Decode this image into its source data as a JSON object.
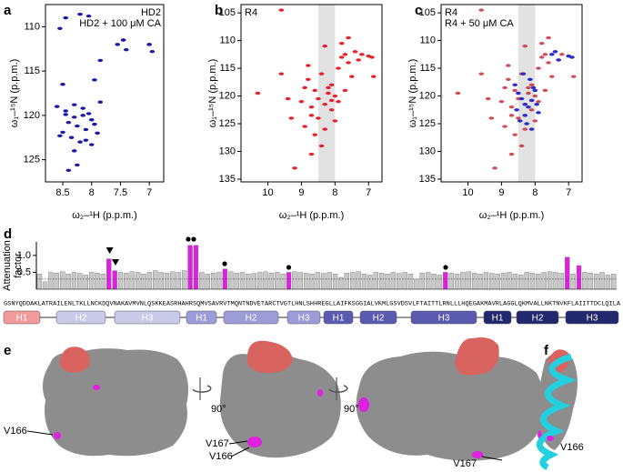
{
  "chart_data": [
    {
      "type": "scatter",
      "panel_label": "a",
      "xlabel": "ω₂–¹H (p.p.m.)",
      "ylabel": "ω₁–¹⁵N (p.p.m.)",
      "xlim": [
        8.8,
        6.75
      ],
      "ylim": [
        107.5,
        127.5
      ],
      "xticks": [
        8.5,
        8,
        7.5,
        7
      ],
      "yticks": [
        110,
        115,
        120,
        125
      ],
      "legend": "top-right",
      "series": [
        {
          "name": "HD2",
          "color": "#e8202a",
          "x": [
            7.45,
            7.0,
            8.2
          ],
          "y": [
            111.5,
            112.0,
            108.6
          ]
        },
        {
          "name": "HD2 + 100 μM CA",
          "color": "#1a1aa8",
          "x": [
            8.55,
            8.45,
            8.2,
            8.05,
            7.55,
            7.45,
            7.4,
            7.0,
            6.95,
            7.85,
            7.95,
            8.5,
            8.6,
            8.45,
            8.3,
            8.15,
            8.05,
            8.0,
            7.95,
            8.4,
            8.25,
            8.1,
            7.9,
            8.55,
            8.35,
            8.2,
            8.0,
            8.45,
            8.3,
            8.15,
            7.85,
            8.5,
            8.3,
            8.1,
            8.4,
            8.25
          ],
          "y": [
            110.2,
            109.0,
            108.6,
            108.8,
            112.0,
            111.5,
            112.6,
            112.0,
            112.8,
            113.8,
            116.0,
            116.5,
            119.0,
            119.5,
            118.8,
            119.2,
            119.8,
            120.5,
            121.0,
            120.8,
            121.2,
            121.6,
            122.0,
            122.3,
            122.5,
            123.0,
            123.3,
            119.9,
            120.2,
            120.0,
            118.5,
            121.9,
            124.0,
            122.8,
            126.2,
            125.6
          ]
        }
      ]
    },
    {
      "type": "scatter",
      "panel_label": "b",
      "xlabel": "ω₂–¹H (p.p.m.)",
      "ylabel": "ω₁–¹⁵N (p.p.m.)",
      "xlim": [
        10.8,
        6.6
      ],
      "ylim": [
        103.5,
        135.5
      ],
      "xticks": [
        10,
        9,
        8,
        7
      ],
      "yticks": [
        105,
        110,
        115,
        120,
        125,
        130,
        135
      ],
      "legend": "top-left",
      "band": [
        8.5,
        8.0
      ],
      "series": [
        {
          "name": "R4",
          "color": "#e8202a",
          "x": [
            10.3,
            9.6,
            9.4,
            9.3,
            9.0,
            8.9,
            8.8,
            8.7,
            8.6,
            8.5,
            8.4,
            8.3,
            8.2,
            8.1,
            8.0,
            7.9,
            7.8,
            7.7,
            7.6,
            7.5,
            7.4,
            7.3,
            7.2,
            7.0,
            6.9,
            6.85,
            8.9,
            8.7,
            8.5,
            8.3,
            8.1,
            7.9,
            7.7,
            8.6,
            8.4,
            8.2,
            8.0,
            7.8,
            8.8,
            8.3,
            7.6,
            9.2,
            8.7,
            8.1,
            9.6
          ],
          "y": [
            119.5,
            116.0,
            120.5,
            124.0,
            121.0,
            118.5,
            117.0,
            122.0,
            119.0,
            120.5,
            116.0,
            121.5,
            119.5,
            118.0,
            120.0,
            115.0,
            113.0,
            112.5,
            114.0,
            116.5,
            112.0,
            113.5,
            112.5,
            112.8,
            113.0,
            116.5,
            125.5,
            123.5,
            124.0,
            126.0,
            122.5,
            121.0,
            119.0,
            127.0,
            129.0,
            118.5,
            124.5,
            110.5,
            114.5,
            111.0,
            109.5,
            133.0,
            130.5,
            120.8,
            104.5
          ]
        }
      ]
    },
    {
      "type": "scatter",
      "panel_label": "c",
      "xlabel": "ω₂–¹H (p.p.m.)",
      "ylabel": "ω₁–¹⁵N (p.p.m.)",
      "xlim": [
        10.8,
        6.6
      ],
      "ylim": [
        103.5,
        135.5
      ],
      "xticks": [
        10,
        9,
        8,
        7
      ],
      "yticks": [
        105,
        110,
        115,
        120,
        125,
        130,
        135
      ],
      "legend": "top-left",
      "band": [
        8.5,
        8.0
      ],
      "series": [
        {
          "name": "R4",
          "color": "#c8202e",
          "x": [
            10.3,
            9.6,
            9.4,
            9.3,
            9.0,
            8.9,
            8.8,
            8.7,
            8.6,
            8.5,
            8.4,
            8.3,
            8.2,
            8.1,
            8.0,
            7.9,
            7.8,
            7.7,
            7.6,
            7.5,
            7.4,
            7.3,
            7.2,
            7.0,
            6.9,
            6.85,
            8.9,
            8.7,
            8.5,
            8.3,
            8.1,
            7.9,
            7.7,
            8.6,
            8.4,
            8.2,
            8.0,
            7.8,
            8.8,
            8.3,
            7.6,
            9.2,
            8.7,
            8.1,
            9.6
          ],
          "y": [
            119.5,
            116.0,
            120.5,
            124.0,
            121.0,
            118.5,
            117.0,
            122.0,
            119.0,
            120.5,
            116.0,
            121.5,
            119.5,
            118.0,
            120.0,
            115.0,
            113.0,
            112.5,
            114.0,
            116.5,
            112.0,
            113.5,
            112.5,
            112.8,
            113.0,
            116.5,
            125.5,
            123.5,
            124.0,
            126.0,
            122.5,
            121.0,
            119.0,
            127.0,
            129.0,
            118.5,
            124.5,
            110.5,
            114.5,
            111.0,
            109.5,
            133.0,
            130.5,
            120.8,
            104.5
          ]
        },
        {
          "name": "R4 + 50 μM CA",
          "color": "#2a2ad0",
          "x": [
            8.5,
            8.4,
            8.3,
            8.2,
            8.1,
            8.0,
            7.9,
            8.6,
            8.45,
            8.25,
            8.05,
            7.5,
            7.4,
            7.3,
            7.0,
            6.9,
            8.35,
            8.15,
            7.95,
            8.55,
            8.3,
            8.1
          ],
          "y": [
            119.5,
            120.5,
            121.5,
            122.0,
            120.8,
            119.0,
            123.0,
            118.0,
            124.5,
            125.0,
            118.5,
            112.5,
            112.0,
            113.5,
            112.8,
            113.0,
            116.0,
            117.0,
            121.5,
            122.5,
            123.5,
            126.0
          ]
        }
      ]
    },
    {
      "type": "bar",
      "panel_label": "d",
      "ylabel": [
        "Attenuation",
        "factor"
      ],
      "ylim": [
        0,
        1.4
      ],
      "yticks": [
        0.5,
        {
          "value": 1,
          "label": "1.0"
        }
      ],
      "threshold": 0.3,
      "values": [
        0.45,
        0.22,
        0.5,
        0.48,
        0.52,
        0.45,
        0.5,
        0.47,
        0.42,
        0.5,
        0.48,
        0.45,
        0.9,
        0.55,
        0.5,
        0.48,
        0.52,
        0.5,
        0.45,
        0.5,
        0.55,
        0.5,
        0.48,
        0.52,
        0.5,
        0.55,
        1.3,
        1.3,
        0.5,
        0.45,
        0.48,
        0.5,
        0.6,
        0.52,
        0.48,
        0.5,
        0.45,
        0.47,
        0.5,
        0.52,
        0.48,
        0.5,
        0.45,
        0.5,
        0.52,
        0.5,
        0.48,
        0.45,
        0.5,
        0.47,
        0.5,
        0.45,
        0.35,
        0.48,
        0.5,
        0.52,
        0.45,
        0.42,
        0.5,
        0.48,
        0.45,
        0.5,
        0.47,
        0.5,
        0.45,
        0.3,
        0.48,
        0.5,
        0.45,
        0.42,
        0.5,
        0.48,
        0.45,
        0.5,
        0.52,
        0.48,
        0.45,
        0.5,
        0.47,
        0.45,
        0.48,
        0.5,
        0.45,
        0.42,
        0.5,
        0.48,
        0.45,
        0.5,
        0.52,
        0.5,
        0.48,
        0.95,
        0.45,
        0.7,
        0.5,
        0.48,
        0.45,
        0.5,
        0.42,
        0.45
      ],
      "colors": [
        "#c8c8c8",
        "#c8c8c8",
        "#c8c8c8",
        "#c8c8c8",
        "#c8c8c8",
        "#c8c8c8",
        "#c8c8c8",
        "#c8c8c8",
        "#c8c8c8",
        "#c8c8c8",
        "#c8c8c8",
        "#c8c8c8",
        "#e020e0",
        "#e020e0",
        "#c8c8c8",
        "#c8c8c8",
        "#c8c8c8",
        "#c8c8c8",
        "#c8c8c8",
        "#c8c8c8",
        "#c8c8c8",
        "#c8c8c8",
        "#c8c8c8",
        "#c8c8c8",
        "#c8c8c8",
        "#c8c8c8",
        "#e020e0",
        "#e020e0",
        "#c8c8c8",
        "#c8c8c8",
        "#c8c8c8",
        "#c8c8c8",
        "#e020e0",
        "#c8c8c8",
        "#c8c8c8",
        "#c8c8c8",
        "#c8c8c8",
        "#c8c8c8",
        "#c8c8c8",
        "#c8c8c8",
        "#c8c8c8",
        "#c8c8c8",
        "#c8c8c8",
        "#e020e0",
        "#c8c8c8",
        "#c8c8c8",
        "#c8c8c8",
        "#c8c8c8",
        "#c8c8c8",
        "#c8c8c8",
        "#c8c8c8",
        "#c8c8c8",
        "#c8c8c8",
        "#c8c8c8",
        "#c8c8c8",
        "#c8c8c8",
        "#c8c8c8",
        "#c8c8c8",
        "#c8c8c8",
        "#c8c8c8",
        "#c8c8c8",
        "#c8c8c8",
        "#c8c8c8",
        "#c8c8c8",
        "#c8c8c8",
        "#c8c8c8",
        "#c8c8c8",
        "#c8c8c8",
        "#c8c8c8",
        "#c8c8c8",
        "#e020e0",
        "#c8c8c8",
        "#c8c8c8",
        "#c8c8c8",
        "#c8c8c8",
        "#c8c8c8",
        "#c8c8c8",
        "#c8c8c8",
        "#c8c8c8",
        "#c8c8c8",
        "#c8c8c8",
        "#c8c8c8",
        "#c8c8c8",
        "#c8c8c8",
        "#c8c8c8",
        "#c8c8c8",
        "#c8c8c8",
        "#c8c8c8",
        "#c8c8c8",
        "#c8c8c8",
        "#c8c8c8",
        "#e020e0",
        "#c8c8c8",
        "#e020e0",
        "#c8c8c8",
        "#c8c8c8",
        "#c8c8c8",
        "#c8c8c8",
        "#c8c8c8",
        "#c8c8c8"
      ],
      "sequence": "GSNYQDDAKLATRAILENLTKLLNCKDQVNAKAVMVNLQSKKEASRHAHRSQMVSAVRVTMQNTNDVETARCTVGTLHNLSHHREGLLAIFKSGGIALVKMLGSVDSVLFTAITTLRNLLLHQEGAKMAVRLAGGLQKMVALLNKTNVKFLAIITTDCLQILA",
      "helices": [
        "H1",
        "H2",
        "H3",
        "H1",
        "H2",
        "H3",
        "H1",
        "H2",
        "H3",
        "H1",
        "H2",
        "H3"
      ],
      "helix_colors": [
        "#f29a9a",
        "#c9c9ea",
        "#c9c9ea",
        "#9c9cd8",
        "#9c9cd8",
        "#9c9cd8",
        "#5a5ab0",
        "#5a5ab0",
        "#5a5ab0",
        "#22286e",
        "#22286e",
        "#22286e"
      ]
    }
  ],
  "panels": {
    "e": {
      "label": "e",
      "rotation": [
        "90°",
        "90°"
      ],
      "residues": [
        "V166",
        "V167",
        "V166",
        "V166",
        "V167"
      ]
    },
    "f": {
      "label": "f"
    }
  }
}
